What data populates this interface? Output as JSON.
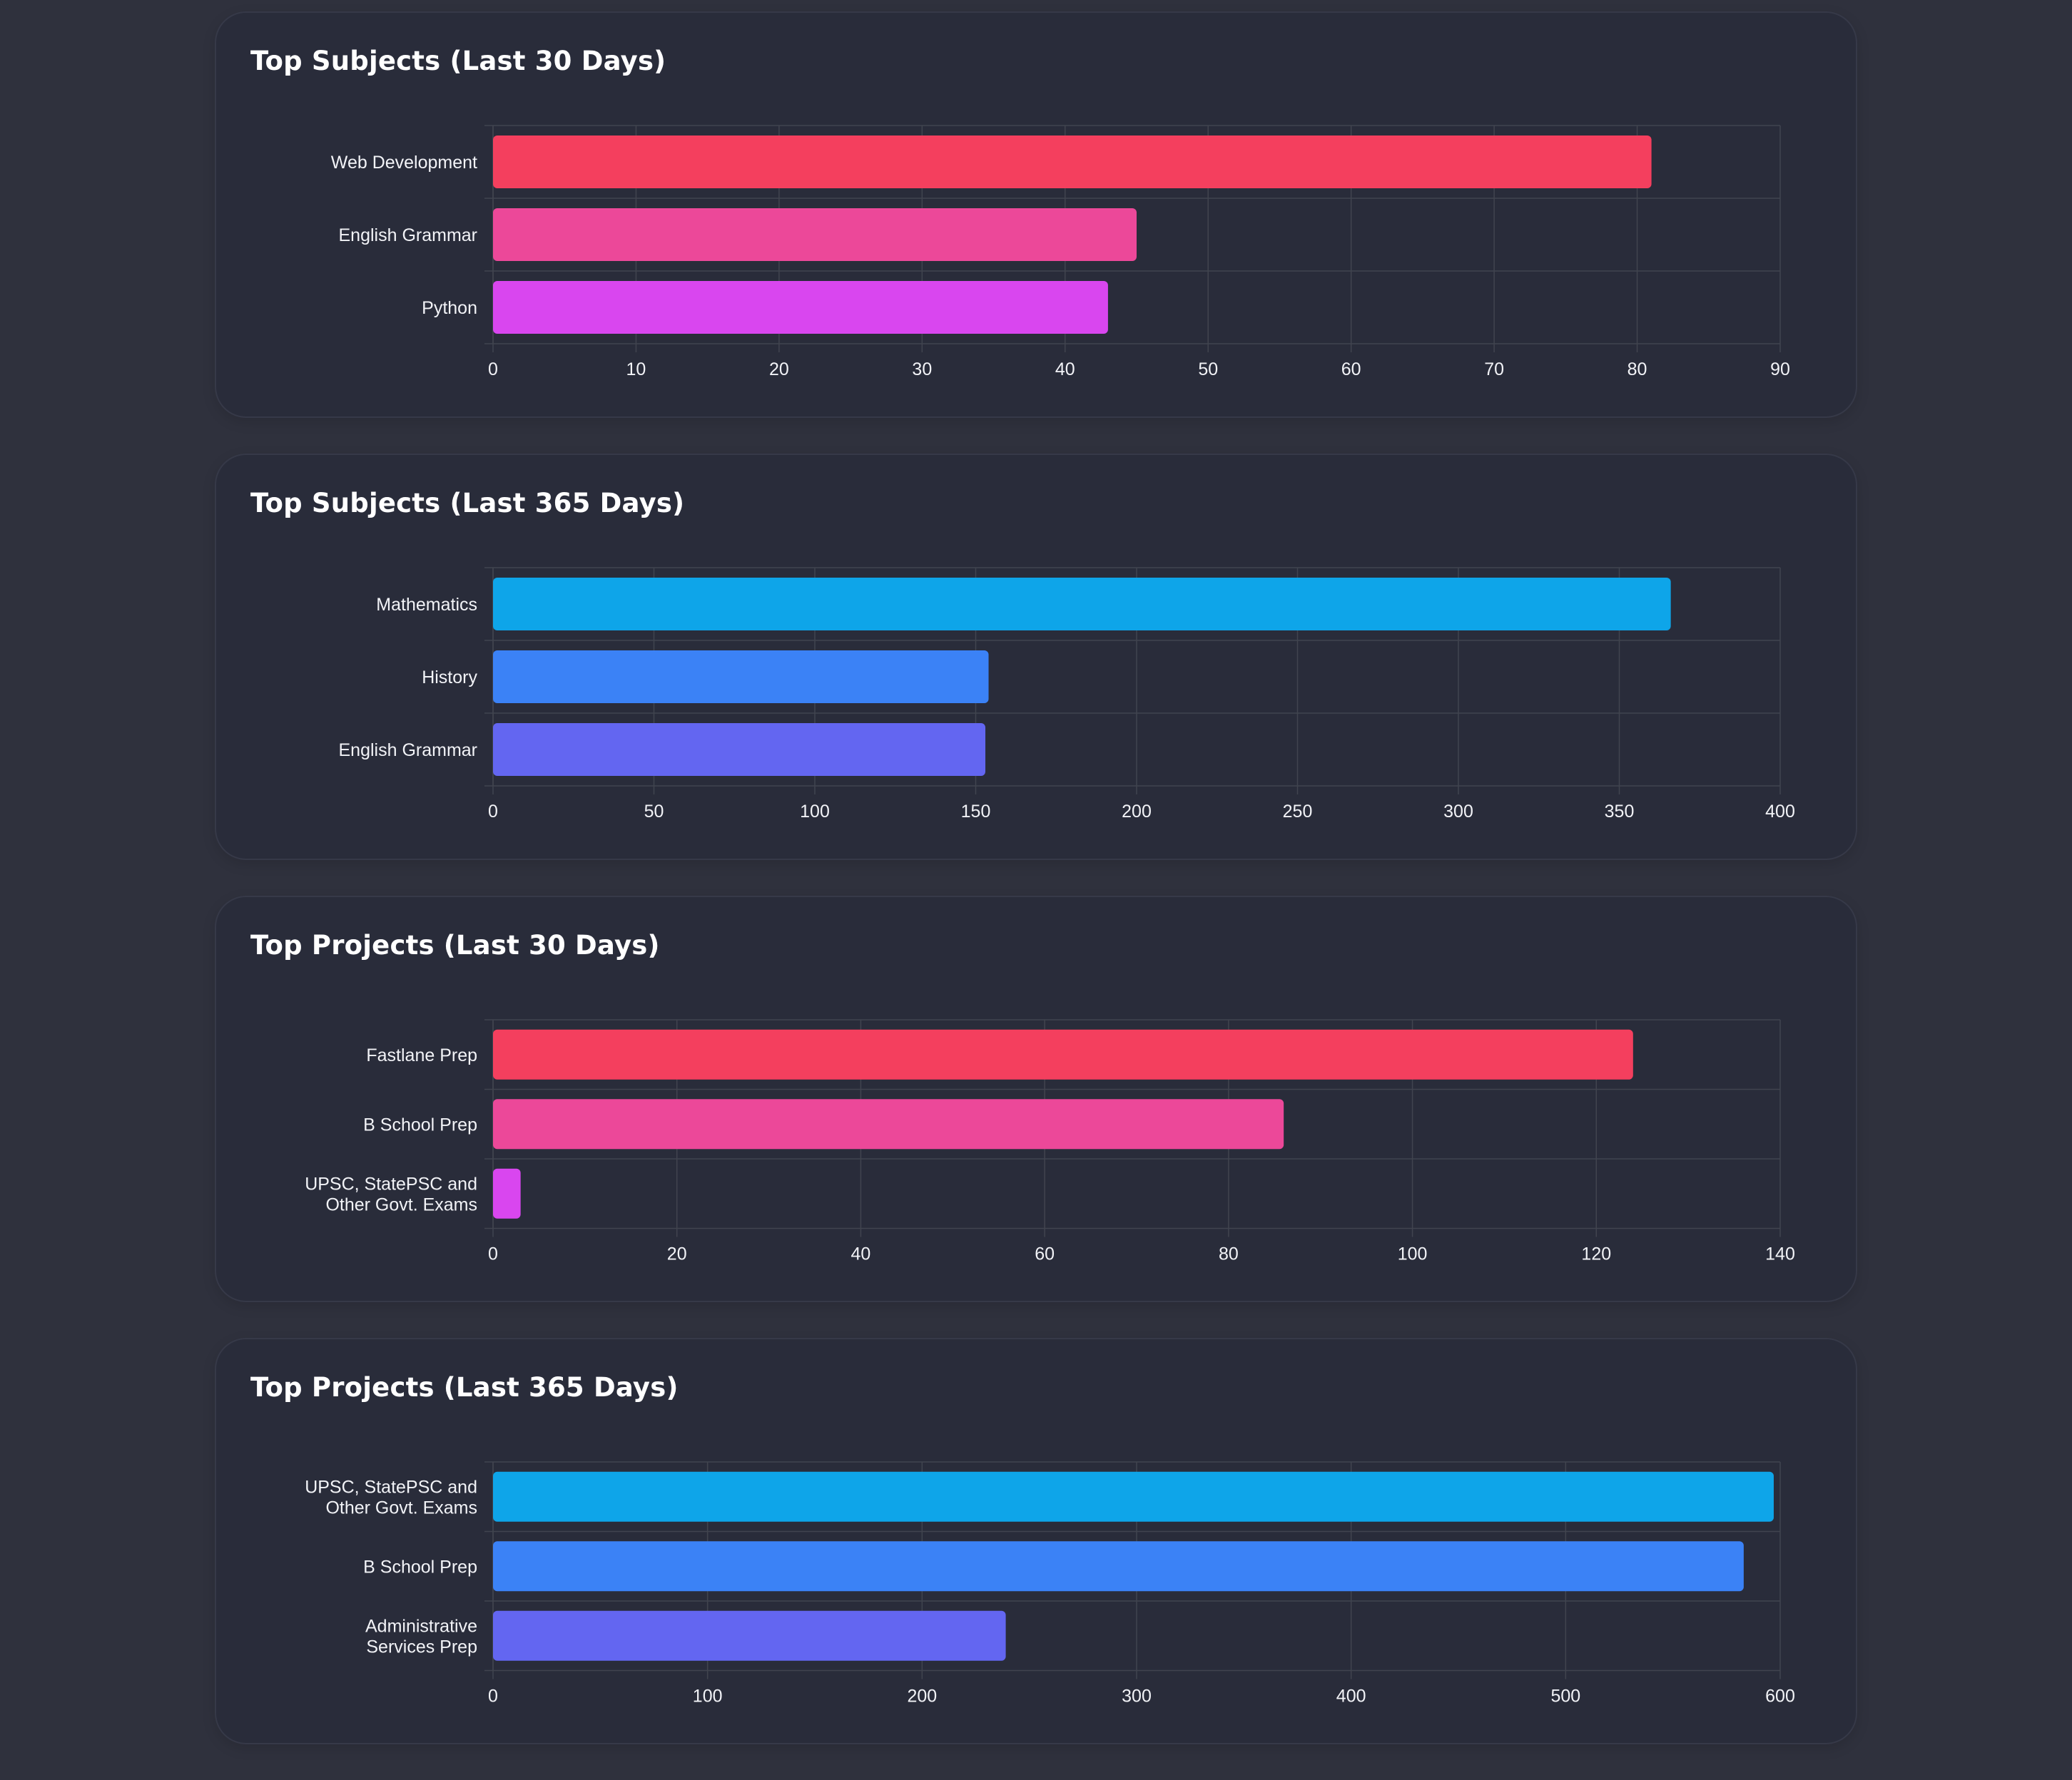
{
  "colors": {
    "page_background": "#2f313d",
    "card_background": "#292c3a",
    "grid": "#41444f",
    "text": "#f2f3f7"
  },
  "chart_data": [
    {
      "type": "bar",
      "orientation": "horizontal",
      "title": "Top Subjects (Last 30 Days)",
      "categories": [
        "Web Development",
        "English Grammar",
        "Python"
      ],
      "values": [
        81,
        45,
        43
      ],
      "bar_colors": [
        "#f43f5e",
        "#ec4899",
        "#d946ef"
      ],
      "xlim": [
        0,
        90
      ],
      "xticks": [
        0,
        10,
        20,
        30,
        40,
        50,
        60,
        70,
        80,
        90
      ],
      "grid": true
    },
    {
      "type": "bar",
      "orientation": "horizontal",
      "title": "Top Subjects (Last 365 Days)",
      "categories": [
        "Mathematics",
        "History",
        "English Grammar"
      ],
      "values": [
        366,
        154,
        153
      ],
      "bar_colors": [
        "#0ea5e9",
        "#3b82f6",
        "#6366f1"
      ],
      "xlim": [
        0,
        400
      ],
      "xticks": [
        0,
        50,
        100,
        150,
        200,
        250,
        300,
        350,
        400
      ],
      "grid": true
    },
    {
      "type": "bar",
      "orientation": "horizontal",
      "title": "Top Projects (Last 30 Days)",
      "categories": [
        [
          "Fastlane Prep"
        ],
        [
          "B School Prep"
        ],
        [
          "UPSC, StatePSC and",
          "Other Govt. Exams"
        ]
      ],
      "values": [
        124,
        86,
        3
      ],
      "bar_colors": [
        "#f43f5e",
        "#ec4899",
        "#d946ef"
      ],
      "xlim": [
        0,
        140
      ],
      "xticks": [
        0,
        20,
        40,
        60,
        80,
        100,
        120,
        140
      ],
      "grid": true
    },
    {
      "type": "bar",
      "orientation": "horizontal",
      "title": "Top Projects (Last 365 Days)",
      "categories": [
        [
          "UPSC, StatePSC and",
          "Other Govt. Exams"
        ],
        [
          "B School Prep"
        ],
        [
          "Administrative",
          "Services Prep"
        ]
      ],
      "values": [
        597,
        583,
        239
      ],
      "bar_colors": [
        "#0ea5e9",
        "#3b82f6",
        "#6366f1"
      ],
      "xlim": [
        0,
        600
      ],
      "xticks": [
        0,
        100,
        200,
        300,
        400,
        500,
        600
      ],
      "grid": true
    }
  ]
}
